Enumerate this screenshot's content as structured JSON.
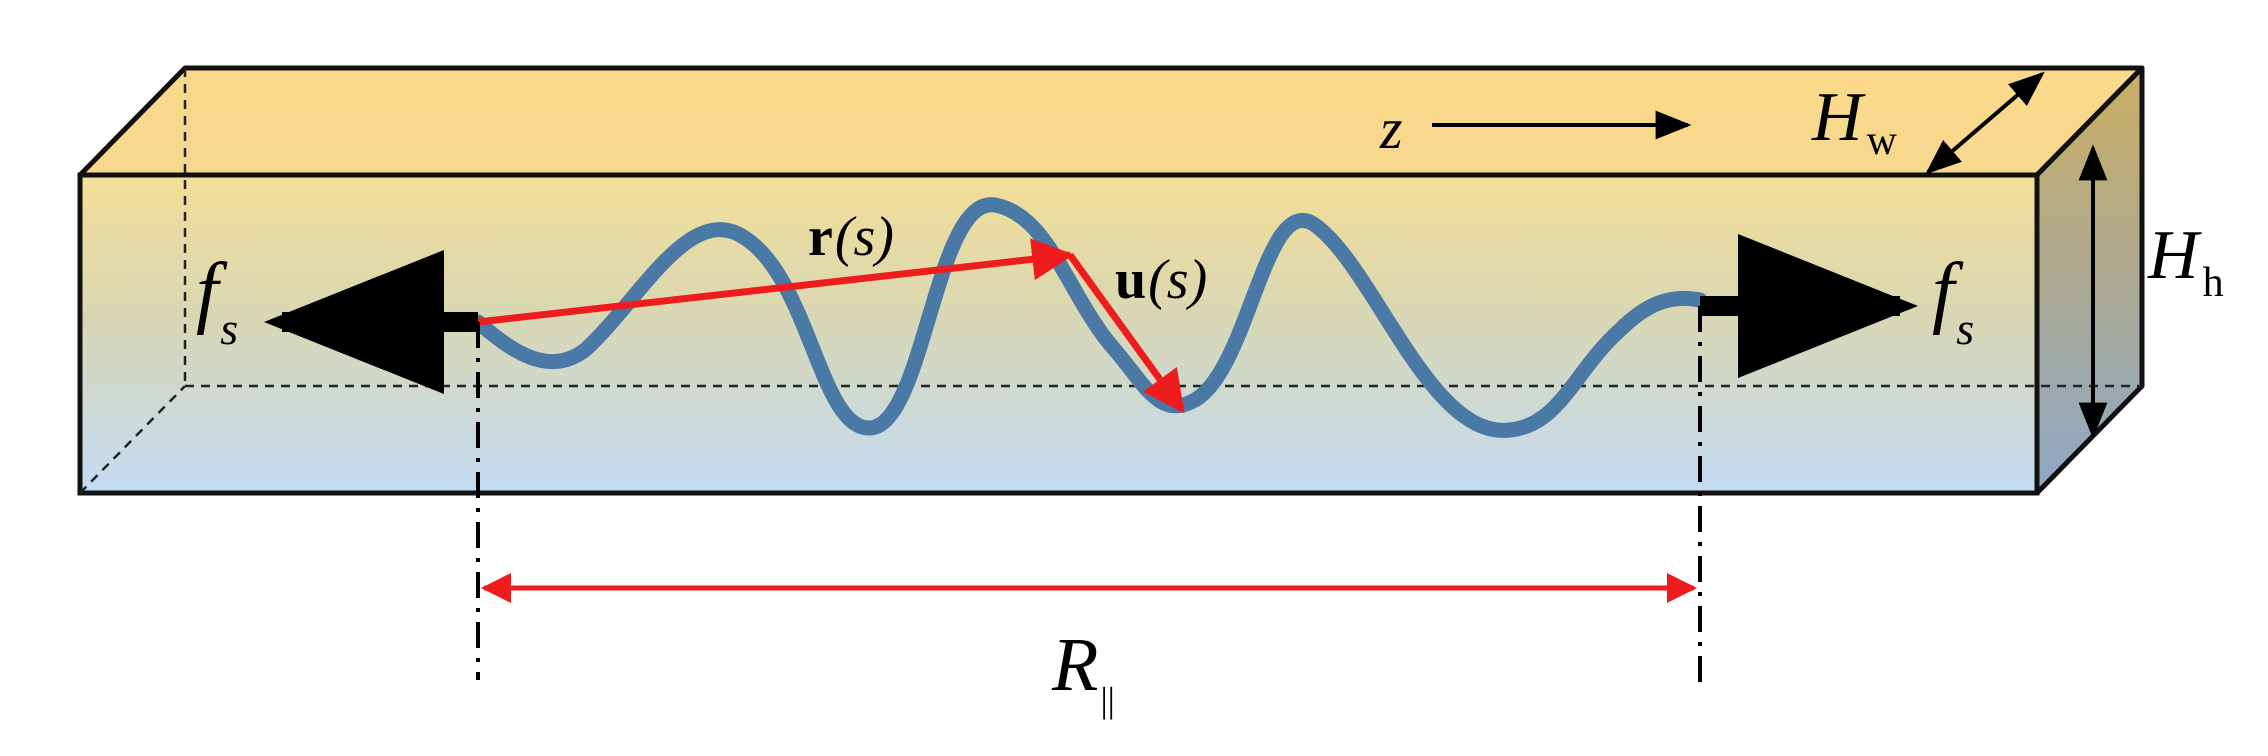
{
  "labels": {
    "z": "z",
    "hw_main": "H",
    "hw_sub": "w",
    "hh_main": "H",
    "hh_sub": "h",
    "fs_left_main": "f",
    "fs_left_sub": "s",
    "fs_right_main": "f",
    "fs_right_sub": "s",
    "r_bold": "r",
    "r_arg": "(s)",
    "u_bold": "u",
    "u_arg": "(s)",
    "rpar_main": "R",
    "rpar_sub": "||"
  },
  "colors": {
    "box_top": "#fbd98a",
    "box_front_top": "#f3de96",
    "box_front_bottom": "#c3dbf3",
    "box_side_top": "#c9ad62",
    "box_side_bottom": "#8ea7c5",
    "polymer": "#4a79a6",
    "vector": "#ee1c1c",
    "force_arrow": "#000000",
    "outline": "#111111"
  }
}
